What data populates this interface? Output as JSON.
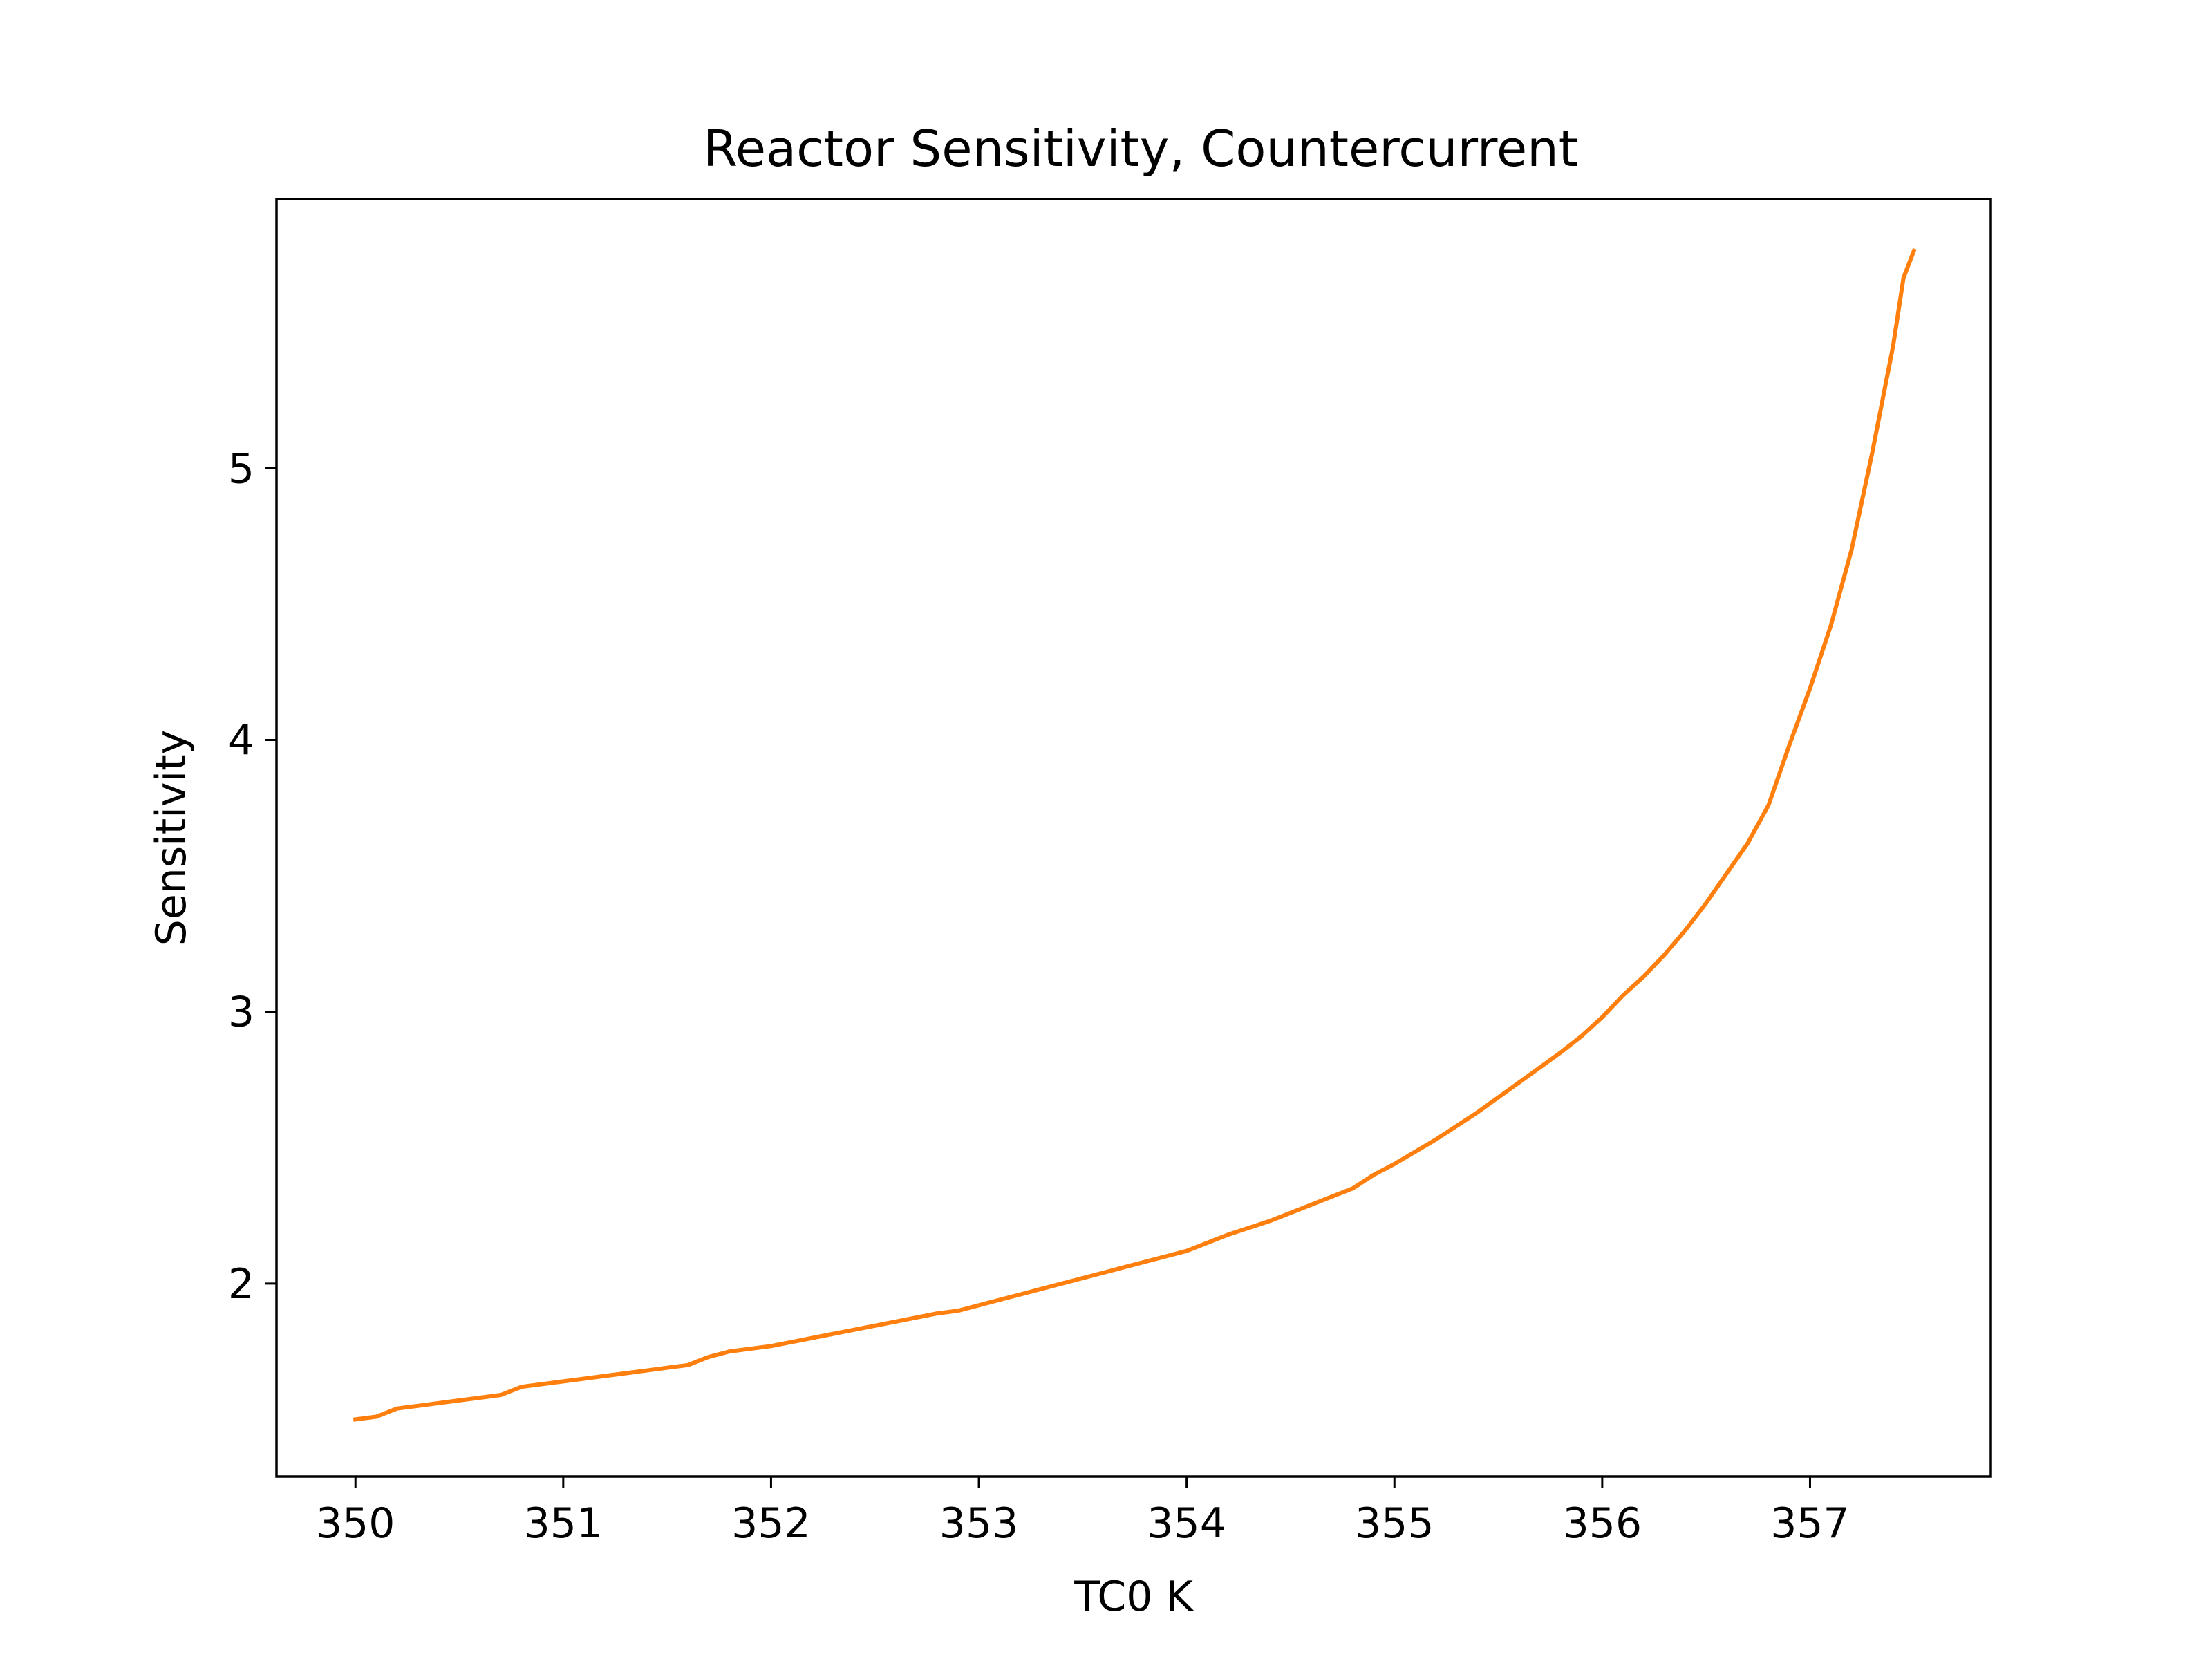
{
  "chart_data": {
    "type": "line",
    "title": "Reactor Sensitivity, Countercurrent",
    "xlabel": "TC0 K",
    "ylabel": "Sensitivity",
    "xlim": [
      349.62,
      357.87
    ],
    "ylim": [
      1.29,
      5.99
    ],
    "xticks": [
      350,
      351,
      352,
      353,
      354,
      355,
      356,
      357
    ],
    "yticks": [
      2,
      3,
      4,
      5
    ],
    "grid": false,
    "line_color": "#ff7f0e",
    "series": [
      {
        "x": [
          350.0,
          350.1,
          350.2,
          350.3,
          350.4,
          350.5,
          350.6,
          350.7,
          350.8,
          350.9,
          351.0,
          351.1,
          351.2,
          351.3,
          351.4,
          351.5,
          351.6,
          351.7,
          351.8,
          351.9,
          352.0,
          352.2,
          352.4,
          352.6,
          352.8,
          352.9,
          353.0,
          353.1,
          353.2,
          353.3,
          353.4,
          353.5,
          353.6,
          353.7,
          353.8,
          353.9,
          354.0,
          354.2,
          354.4,
          354.6,
          354.8,
          354.9,
          355.0,
          355.2,
          355.4,
          355.6,
          355.8,
          355.9,
          356.0,
          356.1,
          356.2,
          356.3,
          356.4,
          356.5,
          356.6,
          356.7,
          356.8,
          356.9,
          357.0,
          357.1,
          357.2,
          357.3,
          357.4,
          357.45,
          357.5
        ],
        "y": [
          1.5,
          1.51,
          1.54,
          1.55,
          1.56,
          1.57,
          1.58,
          1.59,
          1.62,
          1.63,
          1.64,
          1.65,
          1.66,
          1.67,
          1.68,
          1.69,
          1.7,
          1.73,
          1.75,
          1.76,
          1.77,
          1.8,
          1.83,
          1.86,
          1.89,
          1.9,
          1.92,
          1.94,
          1.96,
          1.98,
          2.0,
          2.02,
          2.04,
          2.06,
          2.08,
          2.1,
          2.12,
          2.18,
          2.23,
          2.29,
          2.35,
          2.4,
          2.44,
          2.53,
          2.63,
          2.74,
          2.85,
          2.91,
          2.98,
          3.06,
          3.13,
          3.21,
          3.3,
          3.4,
          3.51,
          3.62,
          3.76,
          3.98,
          4.19,
          4.42,
          4.7,
          5.06,
          5.45,
          5.7,
          5.8
        ]
      }
    ]
  }
}
